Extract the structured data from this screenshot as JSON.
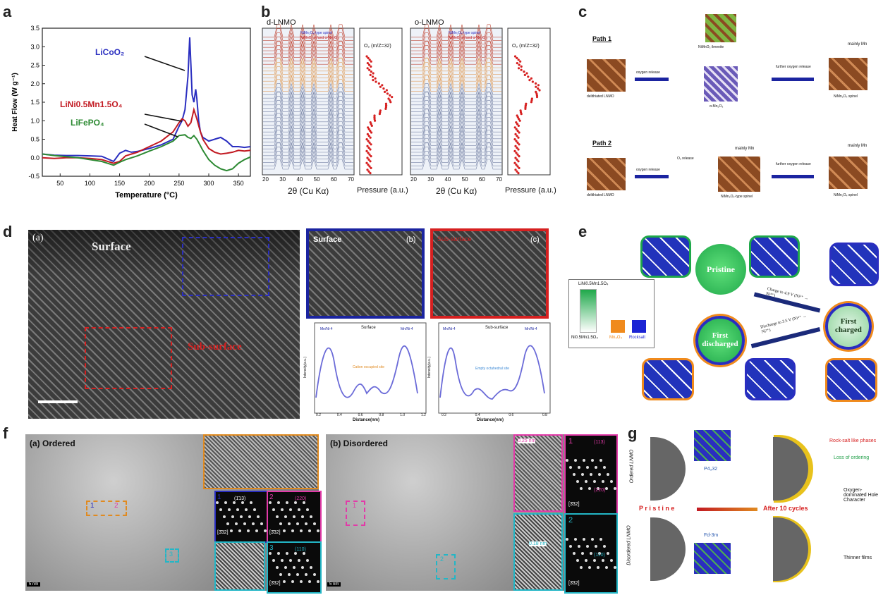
{
  "labels": {
    "a": "a",
    "b": "b",
    "c": "c",
    "d": "d",
    "e": "e",
    "f": "f",
    "g": "g"
  },
  "panel_a": {
    "chart_data": {
      "type": "line",
      "xlabel": "Temperature (°C)",
      "ylabel": "Heat Flow (W g⁻¹)",
      "xlim": [
        20,
        370
      ],
      "ylim": [
        -0.5,
        3.5
      ],
      "xticks": [
        50,
        100,
        150,
        200,
        250,
        300,
        350
      ],
      "yticks": [
        -0.5,
        0.0,
        0.5,
        1.0,
        1.5,
        2.0,
        2.5,
        3.0,
        3.5
      ],
      "series": [
        {
          "name": "LiCoO₂",
          "color": "#2a2ec0",
          "x": [
            20,
            40,
            60,
            80,
            100,
            120,
            140,
            150,
            160,
            170,
            180,
            200,
            220,
            240,
            250,
            255,
            260,
            265,
            268,
            270,
            272,
            275,
            278,
            280,
            283,
            286,
            290,
            300,
            310,
            320,
            330,
            340,
            350,
            360,
            370
          ],
          "y": [
            0.1,
            0.07,
            0.06,
            0.06,
            0.05,
            0.04,
            -0.1,
            0.12,
            0.2,
            0.15,
            0.17,
            0.25,
            0.35,
            0.5,
            0.85,
            1.0,
            1.3,
            2.2,
            3.25,
            2.5,
            1.7,
            1.5,
            1.85,
            1.6,
            1.0,
            0.7,
            0.55,
            0.45,
            0.5,
            0.55,
            0.45,
            0.3,
            0.3,
            0.28,
            0.3
          ]
        },
        {
          "name": "LiNi0.5Mn1.5O₄",
          "color": "#c21a22",
          "x": [
            20,
            40,
            60,
            80,
            100,
            120,
            140,
            150,
            160,
            170,
            180,
            200,
            220,
            240,
            250,
            255,
            260,
            265,
            270,
            275,
            280,
            285,
            290,
            300,
            310,
            320,
            330,
            340,
            350,
            360,
            370
          ],
          "y": [
            0.0,
            -0.02,
            0.0,
            0.0,
            -0.02,
            -0.05,
            -0.15,
            -0.1,
            0.05,
            0.1,
            0.15,
            0.3,
            0.45,
            0.7,
            0.95,
            1.05,
            1.0,
            0.85,
            0.95,
            1.3,
            1.05,
            0.75,
            0.5,
            0.25,
            0.15,
            0.1,
            0.12,
            0.15,
            0.2,
            0.18,
            0.2
          ]
        },
        {
          "name": "LiFePO₄",
          "color": "#2d8a33",
          "x": [
            20,
            40,
            60,
            80,
            100,
            120,
            140,
            150,
            160,
            170,
            180,
            200,
            220,
            240,
            250,
            260,
            265,
            270,
            275,
            280,
            285,
            290,
            300,
            310,
            320,
            330,
            340,
            350,
            360,
            370
          ],
          "y": [
            0.1,
            0.06,
            0.03,
            0.0,
            -0.05,
            -0.1,
            -0.2,
            -0.12,
            -0.05,
            0.0,
            0.05,
            0.18,
            0.3,
            0.45,
            0.6,
            0.62,
            0.55,
            0.52,
            0.6,
            0.5,
            0.35,
            0.2,
            -0.05,
            -0.2,
            -0.3,
            -0.35,
            -0.3,
            -0.15,
            -0.05,
            0.02
          ]
        }
      ],
      "annotations": [
        "LiCoO₂",
        "LiNi0.5Mn1.5O₄",
        "LiFePO₄"
      ]
    }
  },
  "panel_b": {
    "left_title": "d-LNMO",
    "right_title": "o-LNMO",
    "left_legend": [
      "NiMn₂O₄-type spinel",
      "NiMnO₃ or/and α-Mn₂O₃"
    ],
    "right_legend": [
      "NiMn₂O₄-type spinel",
      "NiMnO₃ or/and α-Mn₂O₃"
    ],
    "xlabel": "2θ (Cu Kα)",
    "xticks": [
      "20",
      "30",
      "40",
      "50",
      "60",
      "70"
    ],
    "pressure_title": "O₂ (m/Z=32)",
    "pressure_label": "Pressure (a.u.)"
  },
  "panel_c": {
    "path1": "Path 1",
    "path2": "Path 2",
    "delithiated": "delithiated LNMO",
    "oxygen_release": "oxygen release",
    "further_release": "further oxygen release",
    "ilmenite": "NiMnO₃ ilmenite",
    "amn2o3": "α-Mn₂O₃",
    "spinel": "NiMn₂O₄ spinel",
    "spinel_type": "NiMn₂O₄-type spinel",
    "mainly_mn": "mainly Mn",
    "o2_release": "O₂ release"
  },
  "panel_d": {
    "main_label": "(a)",
    "surface": "Surface",
    "subsurface": "Sub-surface",
    "b_label": "(b)",
    "b_title": "Surface",
    "c_label": "(c)",
    "c_title": "Sub-surface",
    "graph_left_title": "Surface",
    "graph_right_title": "Sub-surface",
    "graph_xlabel": "Distance(nm)",
    "graph_ylabel": "Intensity(a.u.)",
    "peak_label": "Mn/Ni-4",
    "left_anno": "Cation occupied site",
    "right_anno": "Empty octahedral site",
    "left_xticks": [
      "0.2",
      "0.4",
      "0.6",
      "0.8",
      "1.0",
      "1.2"
    ],
    "right_xticks": [
      "0.2",
      "0.4",
      "0.6",
      "0.8"
    ]
  },
  "panel_e": {
    "pristine": "Pristine",
    "first_charged": "First charged",
    "first_discharged": "First discharged",
    "charge_arrow": "Charge to 4.9 V (Ni²⁺ → Ni⁴⁺)",
    "discharge_arrow": "Discharge to 3.5 V (Ni⁴⁺ → Ni²⁺)",
    "legend_top": "LiNi0.5Mn1.5O₄",
    "legend_bottom": "Ni0.5Mn1.5O₄",
    "mn3o4": "Mn₃O₄",
    "rocksalt": "Rocksalt",
    "colors": {
      "pristine": "#1fa84a",
      "charged": "#2a2ec0",
      "mn3o4": "#f08a1c",
      "rocksalt": "#1b24d4"
    }
  },
  "panel_f": {
    "ordered": "(a) Ordered",
    "disordered": "(b) Disordered",
    "scale_a": "5 nm",
    "scale_b": "5 nm",
    "d1": "0.25 nm",
    "d2": "0.18 nm",
    "inset_a_label": "[3̄32]",
    "inset_labels": [
      "1",
      "2",
      "3"
    ],
    "hkl_113": "(1̄13)",
    "hkl_220": "(220)",
    "hkl_110": "(110)",
    "hkl_b1": "(113)",
    "hkl_b2": "(220)",
    "hkl_b3": "(110)"
  },
  "panel_g": {
    "ordered": "Ordered LNMO",
    "disordered": "Disordered LNMO",
    "p4332": "P4₃32",
    "fd3m": "Fd-3m",
    "pristine": "P r i s t i n e",
    "after": "After 10 cycles",
    "rocksalt": "Rock-salt like phases",
    "loss": "Loss of ordering",
    "oxygen": "Oxygen-dominated Hole Character",
    "thinner": "Thinner films"
  }
}
